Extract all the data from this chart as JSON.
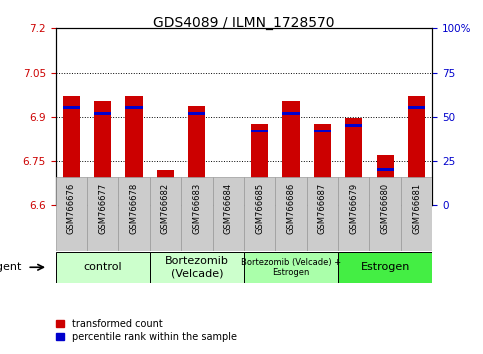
{
  "title": "GDS4089 / ILMN_1728570",
  "samples": [
    "GSM766676",
    "GSM766677",
    "GSM766678",
    "GSM766682",
    "GSM766683",
    "GSM766684",
    "GSM766685",
    "GSM766686",
    "GSM766687",
    "GSM766679",
    "GSM766680",
    "GSM766681"
  ],
  "transformed_count": [
    6.97,
    6.955,
    6.97,
    6.72,
    6.935,
    6.625,
    6.875,
    6.955,
    6.875,
    6.895,
    6.77,
    6.97
  ],
  "percentile_rank": [
    55,
    52,
    55,
    10,
    52,
    5,
    42,
    52,
    42,
    45,
    20,
    55
  ],
  "ylim_left": [
    6.6,
    7.2
  ],
  "ylim_right": [
    0,
    100
  ],
  "yticks_left": [
    6.6,
    6.75,
    6.9,
    7.05,
    7.2
  ],
  "yticks_right": [
    0,
    25,
    50,
    75,
    100
  ],
  "ytick_labels_left": [
    "6.6",
    "6.75",
    "6.9",
    "7.05",
    "7.2"
  ],
  "ytick_labels_right": [
    "0",
    "25",
    "50",
    "75",
    "100%"
  ],
  "grid_lines": [
    6.75,
    6.9,
    7.05
  ],
  "bar_color_red": "#CC0000",
  "bar_color_blue": "#0000CC",
  "bar_width": 0.55,
  "groups_def": [
    {
      "label": "control",
      "start": 0,
      "end": 2,
      "color": "#CCFFCC",
      "fontsize": 8
    },
    {
      "label": "Bortezomib\n(Velcade)",
      "start": 3,
      "end": 5,
      "color": "#CCFFCC",
      "fontsize": 8
    },
    {
      "label": "Bortezomib (Velcade) +\nEstrogen",
      "start": 6,
      "end": 8,
      "color": "#AAFFAA",
      "fontsize": 6
    },
    {
      "label": "Estrogen",
      "start": 9,
      "end": 11,
      "color": "#44EE44",
      "fontsize": 8
    }
  ],
  "legend_red_label": "transformed count",
  "legend_blue_label": "percentile rank within the sample",
  "agent_label": "agent",
  "left_axis_color": "#CC0000",
  "right_axis_color": "#0000CC",
  "title_fontsize": 10,
  "tick_fontsize": 7.5,
  "bar_base": 6.6,
  "xtick_bg_color": "#CCCCCC",
  "xtick_border_color": "#999999"
}
